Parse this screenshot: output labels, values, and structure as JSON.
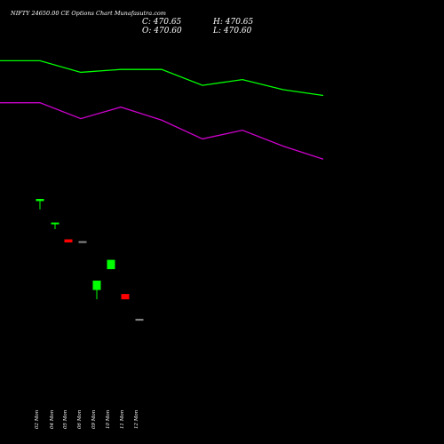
{
  "header": {
    "title": "NIFTY 24650.00 CE Options Chart Munafasutra.com",
    "c_label": "C: 470.65",
    "o_label": "O: 470.60",
    "h_label": "H: 470.65",
    "l_label": "L: 470.60"
  },
  "chart_data": [
    {
      "type": "line",
      "x": [
        "02 Mon",
        "04 Mon",
        "05 Mon",
        "06 Mon",
        "09 Mon",
        "10 Mon",
        "11 Mon",
        "12 Mon"
      ],
      "series": [
        {
          "color": "#00ff00",
          "values": [
            0.93,
            0.93,
            0.85,
            0.87,
            0.87,
            0.76,
            0.8,
            0.73
          ]
        },
        {
          "color": "#cc00cc",
          "values": [
            0.64,
            0.64,
            0.53,
            0.61,
            0.52,
            0.39,
            0.45,
            0.34
          ]
        }
      ],
      "extra_end_points": [
        0.69,
        0.25
      ],
      "ylim": [
        0,
        1
      ]
    },
    {
      "type": "candlestick",
      "x": [
        "02 Mon",
        "04 Mon",
        "05 Mon",
        "06 Mon",
        "09 Mon",
        "10 Mon",
        "11 Mon",
        "12 Mon"
      ],
      "candles": [
        {
          "open": 0.93,
          "close": 1.0,
          "high": 1.0,
          "low": 0.66,
          "color": "#00ff00"
        },
        {
          "open": 0.2,
          "close": 0.24,
          "high": 0.24,
          "low": 0.03,
          "color": "#00ff00"
        },
        {
          "open": -0.3,
          "close": -0.4,
          "high": -0.3,
          "low": -0.4,
          "color": "#ff0000"
        },
        {
          "open": -0.36,
          "close": -0.4,
          "high": -0.36,
          "low": -0.4,
          "color": "#888888"
        },
        {
          "open": -1.93,
          "close": -1.63,
          "high": -1.63,
          "low": -2.23,
          "color": "#00ff00"
        },
        {
          "open": -1.26,
          "close": -0.96,
          "high": -0.96,
          "low": -1.26,
          "color": "#00ff00"
        },
        {
          "open": -2.06,
          "close": -2.23,
          "high": -2.06,
          "low": -2.23,
          "color": "#ff0000"
        },
        {
          "open": -2.86,
          "close": -2.89,
          "high": -2.86,
          "low": -2.89,
          "color": "#888888"
        }
      ]
    }
  ]
}
